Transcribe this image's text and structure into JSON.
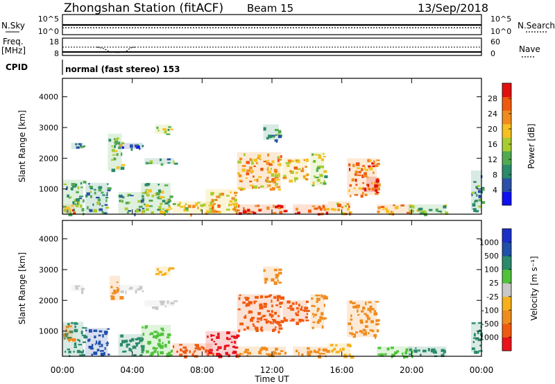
{
  "header": {
    "station": "Zhongshan Station (fitACF)",
    "beam": "Beam 15",
    "date": "13/Sep/2018"
  },
  "nsky_panel": {
    "left_label": "N.Sky",
    "left_ticks": [
      "10^5",
      "10^0"
    ],
    "right_ticks": [
      "10^5",
      "10^0"
    ],
    "right_label": "N.Search"
  },
  "freq_panel": {
    "left_label_1": "Freq.",
    "left_label_2": "[MHz]",
    "left_ticks": [
      "18",
      "8"
    ],
    "right_ticks": [
      "60",
      "0"
    ],
    "right_label": "Nave"
  },
  "cpid": {
    "label": "CPID",
    "text": "normal (fast stereo) 153"
  },
  "colors": {
    "velocity_scale": [
      "#e8141a",
      "#f05a0f",
      "#f08c1e",
      "#f5b01a",
      "#c8c8c8",
      "#4fc23a",
      "#2a8a6a",
      "#2050a8",
      "#1a30c8"
    ],
    "power_scale": [
      "#1010f0",
      "#2a50a8",
      "#2a8a6a",
      "#50aa50",
      "#a8cc30",
      "#f5c020",
      "#f08c1e",
      "#f05a0f",
      "#e01010"
    ]
  },
  "chart_data": [
    {
      "type": "heatmap",
      "name": "power_panel",
      "xlabel": "",
      "ylabel": "Slant Range [km]",
      "x_ticks": [
        "00:00",
        "04:00",
        "08:00",
        "12:00",
        "16:00",
        "20:00",
        "00:00"
      ],
      "x_hours": [
        0,
        4,
        8,
        12,
        16,
        20,
        24
      ],
      "xlim": [
        0,
        24
      ],
      "y_ticks": [
        1000,
        2000,
        3000,
        4000
      ],
      "ylim": [
        180,
        4600
      ],
      "colorbar": {
        "label": "Power [dB]",
        "ticks": [
          4,
          8,
          12,
          16,
          20,
          24,
          28
        ],
        "range": [
          0,
          32
        ]
      },
      "patches": [
        {
          "t0": 0.0,
          "t1": 1.2,
          "r0": 200,
          "r1": 1300,
          "v": 12
        },
        {
          "t0": 0.0,
          "t1": 0.7,
          "r0": 200,
          "r1": 500,
          "v": 24
        },
        {
          "t0": 0.5,
          "t1": 1.2,
          "r0": 2300,
          "r1": 2500,
          "v": 8
        },
        {
          "t0": 1.3,
          "t1": 2.6,
          "r0": 200,
          "r1": 1200,
          "v": 10
        },
        {
          "t0": 2.6,
          "t1": 3.4,
          "r0": 1600,
          "r1": 2800,
          "v": 14
        },
        {
          "t0": 3.2,
          "t1": 4.6,
          "r0": 200,
          "r1": 900,
          "v": 12
        },
        {
          "t0": 3.2,
          "t1": 4.6,
          "r0": 2300,
          "r1": 2500,
          "v": 7
        },
        {
          "t0": 4.7,
          "t1": 6.4,
          "r0": 1800,
          "r1": 2000,
          "v": 9
        },
        {
          "t0": 4.5,
          "t1": 6.2,
          "r0": 200,
          "r1": 1200,
          "v": 14
        },
        {
          "t0": 5.3,
          "t1": 6.2,
          "r0": 2800,
          "r1": 3100,
          "v": 15
        },
        {
          "t0": 6.3,
          "t1": 8.6,
          "r0": 200,
          "r1": 600,
          "v": 18
        },
        {
          "t0": 8.2,
          "t1": 10.0,
          "r0": 200,
          "r1": 1000,
          "v": 20
        },
        {
          "t0": 10.0,
          "t1": 12.5,
          "r0": 1000,
          "r1": 2200,
          "v": 22
        },
        {
          "t0": 10.0,
          "t1": 12.8,
          "r0": 200,
          "r1": 500,
          "v": 28
        },
        {
          "t0": 11.5,
          "t1": 12.4,
          "r0": 2600,
          "r1": 3100,
          "v": 10
        },
        {
          "t0": 12.6,
          "t1": 14.0,
          "r0": 1300,
          "r1": 2000,
          "v": 20
        },
        {
          "t0": 13.2,
          "t1": 15.2,
          "r0": 200,
          "r1": 500,
          "v": 26
        },
        {
          "t0": 14.2,
          "t1": 15.0,
          "r0": 1100,
          "r1": 2200,
          "v": 16
        },
        {
          "t0": 15.2,
          "t1": 16.5,
          "r0": 200,
          "r1": 600,
          "v": 22
        },
        {
          "t0": 16.3,
          "t1": 18.0,
          "r0": 800,
          "r1": 2000,
          "v": 24
        },
        {
          "t0": 17.4,
          "t1": 18.0,
          "r0": 900,
          "r1": 1400,
          "v": 30
        },
        {
          "t0": 18.0,
          "t1": 20.0,
          "r0": 200,
          "r1": 500,
          "v": 22
        },
        {
          "t0": 19.8,
          "t1": 22.0,
          "r0": 200,
          "r1": 500,
          "v": 14
        },
        {
          "t0": 23.4,
          "t1": 24.0,
          "r0": 300,
          "r1": 1600,
          "v": 10
        }
      ]
    },
    {
      "type": "heatmap",
      "name": "velocity_panel",
      "xlabel": "Time UT",
      "ylabel": "Slant Range [km]",
      "x_ticks": [
        "00:00",
        "04:00",
        "08:00",
        "12:00",
        "16:00",
        "20:00",
        "00:00"
      ],
      "x_hours": [
        0,
        4,
        8,
        12,
        16,
        20,
        24
      ],
      "xlim": [
        0,
        24
      ],
      "y_ticks": [
        1000,
        2000,
        3000,
        4000
      ],
      "ylim": [
        180,
        4600
      ],
      "colorbar": {
        "label": "Velocity [m s⁻¹]",
        "ticks": [
          "-1000",
          "-500",
          "-100",
          "-25",
          "25",
          "100",
          "500",
          "1000"
        ]
      },
      "patches": [
        {
          "t0": 0.0,
          "t1": 1.2,
          "r0": 200,
          "r1": 1300,
          "c": "#2a8a6a"
        },
        {
          "t0": 0.0,
          "t1": 0.6,
          "r0": 700,
          "r1": 1200,
          "c": "#f08c1e"
        },
        {
          "t0": 0.5,
          "t1": 1.2,
          "r0": 2300,
          "r1": 2500,
          "c": "#c8c8c8"
        },
        {
          "t0": 1.3,
          "t1": 2.6,
          "r0": 200,
          "r1": 1100,
          "c": "#2050a8"
        },
        {
          "t0": 2.7,
          "t1": 3.3,
          "r0": 2000,
          "r1": 2800,
          "c": "#f08c1e"
        },
        {
          "t0": 3.2,
          "t1": 4.6,
          "r0": 2300,
          "r1": 2500,
          "c": "#c8c8c8"
        },
        {
          "t0": 3.2,
          "t1": 4.6,
          "r0": 200,
          "r1": 900,
          "c": "#2a8a6a"
        },
        {
          "t0": 4.7,
          "t1": 6.4,
          "r0": 1800,
          "r1": 2000,
          "c": "#c8c8c8"
        },
        {
          "t0": 4.5,
          "t1": 6.2,
          "r0": 200,
          "r1": 1200,
          "c": "#4fc23a"
        },
        {
          "t0": 5.3,
          "t1": 6.2,
          "r0": 2800,
          "r1": 3100,
          "c": "#f5b01a"
        },
        {
          "t0": 6.3,
          "t1": 8.6,
          "r0": 200,
          "r1": 600,
          "c": "#f05a0f"
        },
        {
          "t0": 8.2,
          "t1": 10.0,
          "r0": 200,
          "r1": 1000,
          "c": "#e8141a"
        },
        {
          "t0": 10.0,
          "t1": 12.5,
          "r0": 1000,
          "r1": 2200,
          "c": "#f05a0f"
        },
        {
          "t0": 10.0,
          "t1": 12.8,
          "r0": 200,
          "r1": 500,
          "c": "#f08c1e"
        },
        {
          "t0": 11.5,
          "t1": 12.4,
          "r0": 2600,
          "r1": 3100,
          "c": "#f08c1e"
        },
        {
          "t0": 12.6,
          "t1": 14.0,
          "r0": 1300,
          "r1": 2000,
          "c": "#f05a0f"
        },
        {
          "t0": 13.2,
          "t1": 15.2,
          "r0": 200,
          "r1": 500,
          "c": "#f08c1e"
        },
        {
          "t0": 14.2,
          "t1": 15.0,
          "r0": 1100,
          "r1": 2200,
          "c": "#f08c1e"
        },
        {
          "t0": 15.2,
          "t1": 16.5,
          "r0": 200,
          "r1": 600,
          "c": "#f5b01a"
        },
        {
          "t0": 16.3,
          "t1": 18.0,
          "r0": 800,
          "r1": 2000,
          "c": "#f08c1e"
        },
        {
          "t0": 18.0,
          "t1": 20.0,
          "r0": 200,
          "r1": 500,
          "c": "#4fc23a"
        },
        {
          "t0": 19.8,
          "t1": 22.0,
          "r0": 200,
          "r1": 500,
          "c": "#2a8a6a"
        },
        {
          "t0": 23.4,
          "t1": 24.0,
          "r0": 300,
          "r1": 1300,
          "c": "#2a8a6a"
        }
      ]
    }
  ]
}
